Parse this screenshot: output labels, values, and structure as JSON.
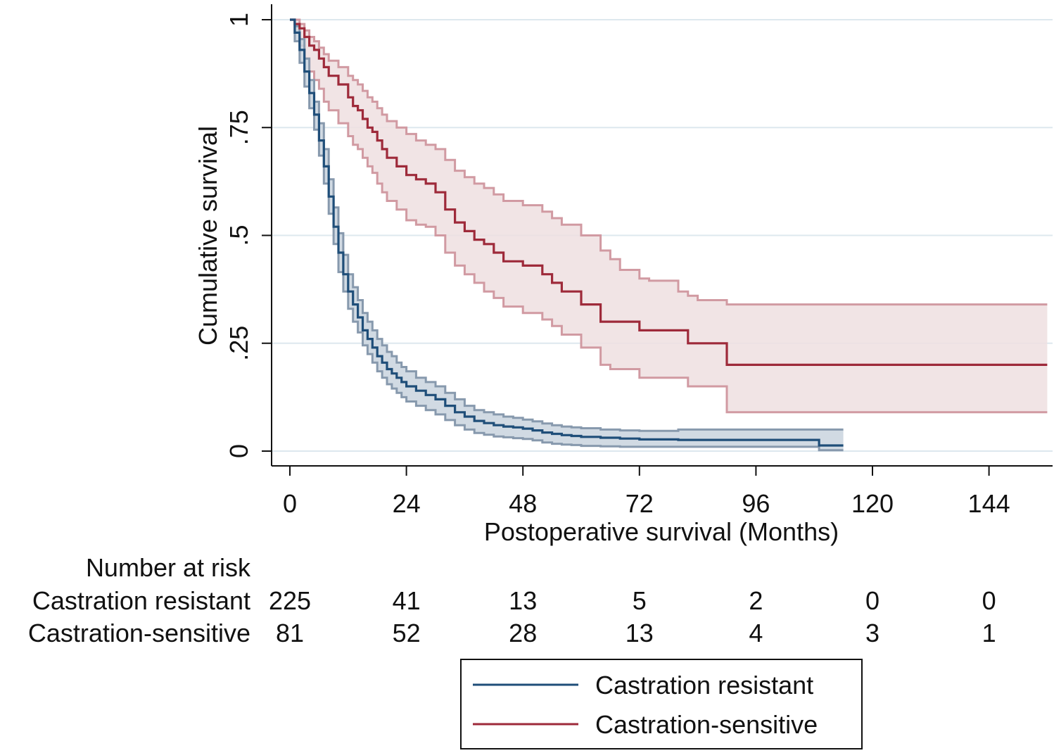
{
  "chart_data": {
    "type": "line",
    "subtype": "kaplan-meier",
    "title": "",
    "xlabel": "Postoperative survival (Months)",
    "ylabel": "Cumulative survival",
    "xlim": [
      0,
      156
    ],
    "ylim": [
      0,
      1
    ],
    "xticks": [
      0,
      24,
      48,
      72,
      96,
      120,
      144
    ],
    "xtick_labels": [
      "0",
      "24",
      "48",
      "72",
      "96",
      "120",
      "144"
    ],
    "yticks": [
      0,
      0.25,
      0.5,
      0.75,
      1
    ],
    "ytick_labels": [
      "0",
      ".25",
      ".5",
      ".75",
      "1"
    ],
    "grid": true,
    "legend_position": "bottom",
    "colors": {
      "resistant": "#1f4e79",
      "sensitive": "#9e2a3a",
      "grid": "#dde8ee",
      "axis": "#111111"
    },
    "series": [
      {
        "name": "Castration resistant",
        "color": "#1f4e79",
        "band_fill": "#c9d3de",
        "band_stroke": "#8799ad",
        "x": [
          0,
          1,
          2,
          3,
          4,
          5,
          6,
          7,
          8,
          9,
          10,
          11,
          12,
          13,
          14,
          15,
          16,
          17,
          18,
          19,
          20,
          21,
          22,
          23,
          24,
          26,
          28,
          30,
          32,
          34,
          36,
          38,
          40,
          42,
          44,
          46,
          48,
          50,
          52,
          54,
          56,
          58,
          60,
          64,
          68,
          72,
          80,
          90,
          100,
          108,
          109,
          114
        ],
        "y": [
          1,
          0.97,
          0.93,
          0.88,
          0.83,
          0.78,
          0.72,
          0.66,
          0.59,
          0.52,
          0.46,
          0.41,
          0.37,
          0.34,
          0.31,
          0.28,
          0.26,
          0.24,
          0.22,
          0.205,
          0.19,
          0.18,
          0.17,
          0.16,
          0.15,
          0.14,
          0.13,
          0.12,
          0.105,
          0.09,
          0.08,
          0.07,
          0.065,
          0.06,
          0.057,
          0.055,
          0.052,
          0.048,
          0.043,
          0.04,
          0.037,
          0.035,
          0.033,
          0.031,
          0.029,
          0.027,
          0.026,
          0.026,
          0.026,
          0.026,
          0.013,
          0.013
        ],
        "upper": [
          1,
          0.985,
          0.955,
          0.91,
          0.86,
          0.81,
          0.76,
          0.7,
          0.63,
          0.565,
          0.505,
          0.455,
          0.41,
          0.38,
          0.35,
          0.32,
          0.3,
          0.28,
          0.26,
          0.245,
          0.23,
          0.22,
          0.205,
          0.195,
          0.185,
          0.17,
          0.16,
          0.15,
          0.135,
          0.12,
          0.105,
          0.095,
          0.09,
          0.085,
          0.08,
          0.077,
          0.073,
          0.069,
          0.064,
          0.06,
          0.057,
          0.055,
          0.053,
          0.05,
          0.048,
          0.047,
          0.05,
          0.05,
          0.05,
          0.05,
          0.05,
          0.05
        ],
        "lower": [
          1,
          0.95,
          0.9,
          0.845,
          0.795,
          0.745,
          0.685,
          0.62,
          0.55,
          0.48,
          0.415,
          0.37,
          0.33,
          0.3,
          0.275,
          0.245,
          0.225,
          0.205,
          0.185,
          0.17,
          0.155,
          0.145,
          0.135,
          0.125,
          0.115,
          0.105,
          0.095,
          0.085,
          0.072,
          0.06,
          0.05,
          0.042,
          0.038,
          0.034,
          0.032,
          0.03,
          0.028,
          0.025,
          0.02,
          0.017,
          0.015,
          0.014,
          0.012,
          0.011,
          0.01,
          0.01,
          0.01,
          0.01,
          0.01,
          0.01,
          0.002,
          0.002
        ]
      },
      {
        "name": "Castration-sensitive",
        "color": "#9e2a3a",
        "band_fill": "#efdfe1",
        "band_stroke": "#d19aa2",
        "x": [
          0,
          1,
          2,
          3,
          4,
          5,
          6,
          7,
          8,
          10,
          12,
          13,
          14,
          15,
          16,
          17,
          18,
          19,
          20,
          22,
          24,
          26,
          28,
          30,
          32,
          34,
          36,
          38,
          40,
          42,
          44,
          48,
          52,
          54,
          56,
          60,
          64,
          66,
          68,
          72,
          74,
          80,
          82,
          84,
          90,
          100,
          110,
          120,
          156
        ],
        "y": [
          1,
          0.99,
          0.98,
          0.96,
          0.94,
          0.93,
          0.91,
          0.89,
          0.87,
          0.85,
          0.82,
          0.8,
          0.79,
          0.77,
          0.75,
          0.74,
          0.72,
          0.7,
          0.68,
          0.66,
          0.64,
          0.63,
          0.62,
          0.6,
          0.56,
          0.53,
          0.51,
          0.49,
          0.48,
          0.46,
          0.44,
          0.43,
          0.41,
          0.39,
          0.37,
          0.34,
          0.3,
          0.3,
          0.3,
          0.28,
          0.28,
          0.28,
          0.25,
          0.25,
          0.2,
          0.2,
          0.2,
          0.2,
          0.2
        ],
        "upper": [
          1,
          1,
          0.99,
          0.975,
          0.96,
          0.95,
          0.935,
          0.92,
          0.905,
          0.89,
          0.87,
          0.86,
          0.85,
          0.835,
          0.82,
          0.81,
          0.795,
          0.78,
          0.765,
          0.75,
          0.735,
          0.72,
          0.71,
          0.7,
          0.675,
          0.65,
          0.635,
          0.62,
          0.61,
          0.595,
          0.58,
          0.57,
          0.555,
          0.54,
          0.525,
          0.5,
          0.465,
          0.445,
          0.42,
          0.4,
          0.395,
          0.37,
          0.36,
          0.35,
          0.34,
          0.34,
          0.34,
          0.34,
          0.34
        ],
        "lower": [
          1,
          0.97,
          0.94,
          0.91,
          0.88,
          0.86,
          0.84,
          0.81,
          0.79,
          0.76,
          0.73,
          0.71,
          0.7,
          0.68,
          0.66,
          0.645,
          0.62,
          0.6,
          0.58,
          0.56,
          0.535,
          0.525,
          0.52,
          0.5,
          0.46,
          0.43,
          0.41,
          0.39,
          0.37,
          0.355,
          0.335,
          0.32,
          0.305,
          0.29,
          0.27,
          0.24,
          0.2,
          0.19,
          0.19,
          0.17,
          0.17,
          0.17,
          0.15,
          0.15,
          0.09,
          0.09,
          0.09,
          0.09,
          0.09
        ]
      }
    ],
    "risk_table": {
      "title": "Number at risk",
      "times": [
        0,
        24,
        48,
        72,
        96,
        120,
        144
      ],
      "rows": [
        {
          "label": "Castration resistant",
          "values": [
            "225",
            "41",
            "13",
            "5",
            "2",
            "0",
            "0"
          ]
        },
        {
          "label": "Castration-sensitive",
          "values": [
            "81",
            "52",
            "28",
            "13",
            "4",
            "3",
            "1"
          ]
        }
      ]
    },
    "legend": [
      {
        "label": "Castration resistant",
        "color": "#1f4e79"
      },
      {
        "label": "Castration-sensitive",
        "color": "#9e2a3a"
      }
    ]
  }
}
